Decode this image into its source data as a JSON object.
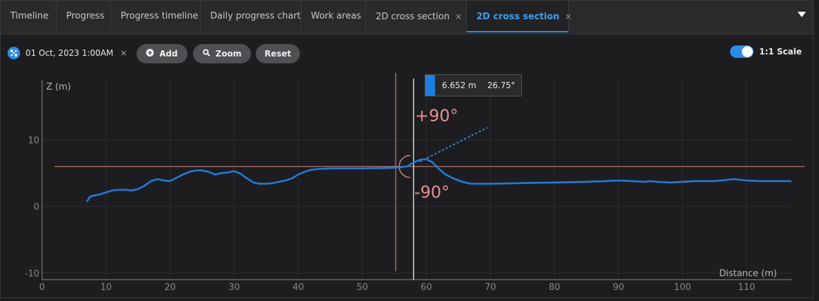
{
  "tabs": [
    {
      "label": "Timeline"
    },
    {
      "label": "Progress"
    },
    {
      "label": "Progress timeline"
    },
    {
      "label": "Daily progress chart"
    },
    {
      "label": "Work areas"
    },
    {
      "label": "2D cross section",
      "closable": "×"
    },
    {
      "label": "2D cross section",
      "closable": "×",
      "active": true
    }
  ],
  "toolbar": {
    "date_label": "01 Oct, 2023 1:00AM",
    "date_close": "×",
    "add_label": "Add",
    "zoom_label": "Zoom",
    "reset_label": "Reset",
    "scale_label": "1:1 Scale",
    "scale_enabled": true
  },
  "tooltip": {
    "distance": "6.652 m",
    "angle": "26.75°"
  },
  "angle_labels": {
    "plus": "+90°",
    "minus": "-90°"
  },
  "colors": {
    "accent": "#2a8ee8",
    "profile": "#1e7de0",
    "guide": "#d98b8b",
    "background": "#1d1d1f"
  },
  "chart_data": {
    "type": "line",
    "xlabel": "Distance (m)",
    "ylabel": "Z (m)",
    "xlim": [
      0,
      117
    ],
    "ylim": [
      -11,
      19
    ],
    "xticks": [
      0,
      10,
      20,
      30,
      40,
      50,
      60,
      70,
      80,
      90,
      100,
      110
    ],
    "yticks": [
      -10,
      0,
      10
    ],
    "grid": true,
    "series": [
      {
        "x": [
          7,
          7.5,
          8,
          9,
          10,
          11,
          12,
          13,
          14,
          15,
          16,
          17,
          18,
          19,
          20,
          21,
          22,
          23,
          24,
          25,
          26,
          27,
          28,
          29,
          30,
          31,
          32,
          33,
          34,
          35,
          36,
          37,
          38,
          39,
          40,
          41,
          42,
          43,
          45,
          50,
          55,
          57,
          58,
          59,
          60,
          61,
          62,
          63,
          64,
          65,
          66,
          67,
          68,
          70,
          75,
          80,
          85,
          88,
          90,
          92,
          94,
          95,
          96,
          98,
          100,
          102,
          105,
          107,
          108,
          110,
          112,
          115,
          117
        ],
        "y": [
          0.7,
          1.5,
          1.6,
          1.8,
          2.1,
          2.4,
          2.5,
          2.5,
          2.4,
          2.6,
          3.1,
          3.8,
          4.1,
          3.9,
          3.8,
          4.3,
          4.8,
          5.2,
          5.4,
          5.4,
          5.2,
          4.8,
          5,
          5.1,
          5.3,
          4.9,
          4.2,
          3.6,
          3.4,
          3.4,
          3.5,
          3.7,
          3.9,
          4.2,
          4.8,
          5.2,
          5.5,
          5.6,
          5.7,
          5.7,
          5.8,
          6,
          6.6,
          7,
          7.1,
          6.6,
          5.6,
          4.8,
          4.3,
          3.9,
          3.6,
          3.4,
          3.4,
          3.4,
          3.5,
          3.6,
          3.7,
          3.8,
          3.9,
          3.8,
          3.7,
          3.8,
          3.7,
          3.6,
          3.7,
          3.8,
          3.8,
          4,
          4.1,
          3.9,
          3.8,
          3.8,
          3.8
        ]
      }
    ],
    "reference": {
      "horizontal_y": 6,
      "vertical_x": 58,
      "cursor_x": 56,
      "slope_angle_deg": 26.75
    }
  }
}
